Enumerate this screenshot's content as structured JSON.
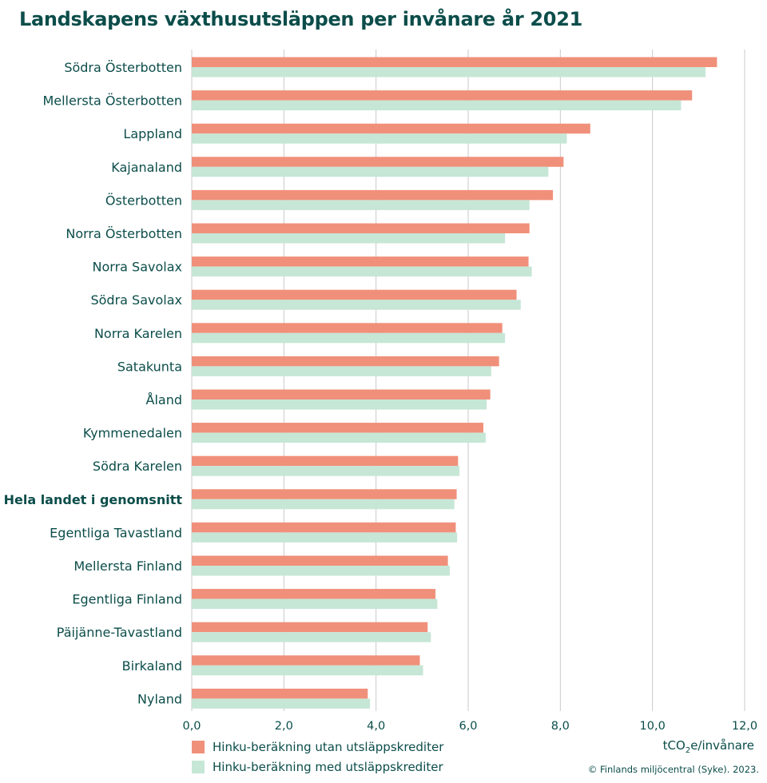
{
  "chart_data": {
    "type": "bar",
    "orientation": "horizontal",
    "title": "Landskapens växthusutsläppen per invånare år 2021",
    "categories": [
      "Södra Österbotten",
      "Mellersta Österbotten",
      "Lappland",
      "Kajanaland",
      "Österbotten",
      "Norra Österbotten",
      "Norra Savolax",
      "Södra Savolax",
      "Norra Karelen",
      "Satakunta",
      "Åland",
      "Kymmenedalen",
      "Södra Karelen",
      "Hela landet i genomsnitt",
      "Egentliga Tavastland",
      "Mellersta Finland",
      "Egentliga Finland",
      "Päijänne-Tavastland",
      "Birkaland",
      "Nyland"
    ],
    "highlight_category": "Hela landet i genomsnitt",
    "series": [
      {
        "name": "Hinku-beräkning utan utsläppskrediter",
        "color": "#f0907a",
        "values": [
          11.4,
          10.86,
          8.65,
          8.07,
          7.84,
          7.33,
          7.31,
          7.05,
          6.74,
          6.67,
          6.48,
          6.33,
          5.78,
          5.75,
          5.73,
          5.56,
          5.29,
          5.12,
          4.95,
          3.82
        ]
      },
      {
        "name": "Hinku-beräkning med utsläppskrediter",
        "color": "#c6e6d6",
        "values": [
          11.15,
          10.62,
          8.14,
          7.74,
          7.33,
          6.8,
          7.38,
          7.14,
          6.8,
          6.5,
          6.4,
          6.38,
          5.81,
          5.7,
          5.76,
          5.6,
          5.33,
          5.19,
          5.02,
          3.87
        ]
      }
    ],
    "xlim": [
      0,
      12
    ],
    "xticks": [
      "0,0",
      "2,0",
      "4,0",
      "6,0",
      "8,0",
      "10,0",
      "12,0"
    ],
    "xlabel": "tCO",
    "xlabel_sub": "2",
    "xlabel_rest": "e/invånare",
    "grid": "vertical",
    "legend_position": "bottom-left"
  },
  "credit": "© Finlands miljöcentral (Syke). 2023."
}
